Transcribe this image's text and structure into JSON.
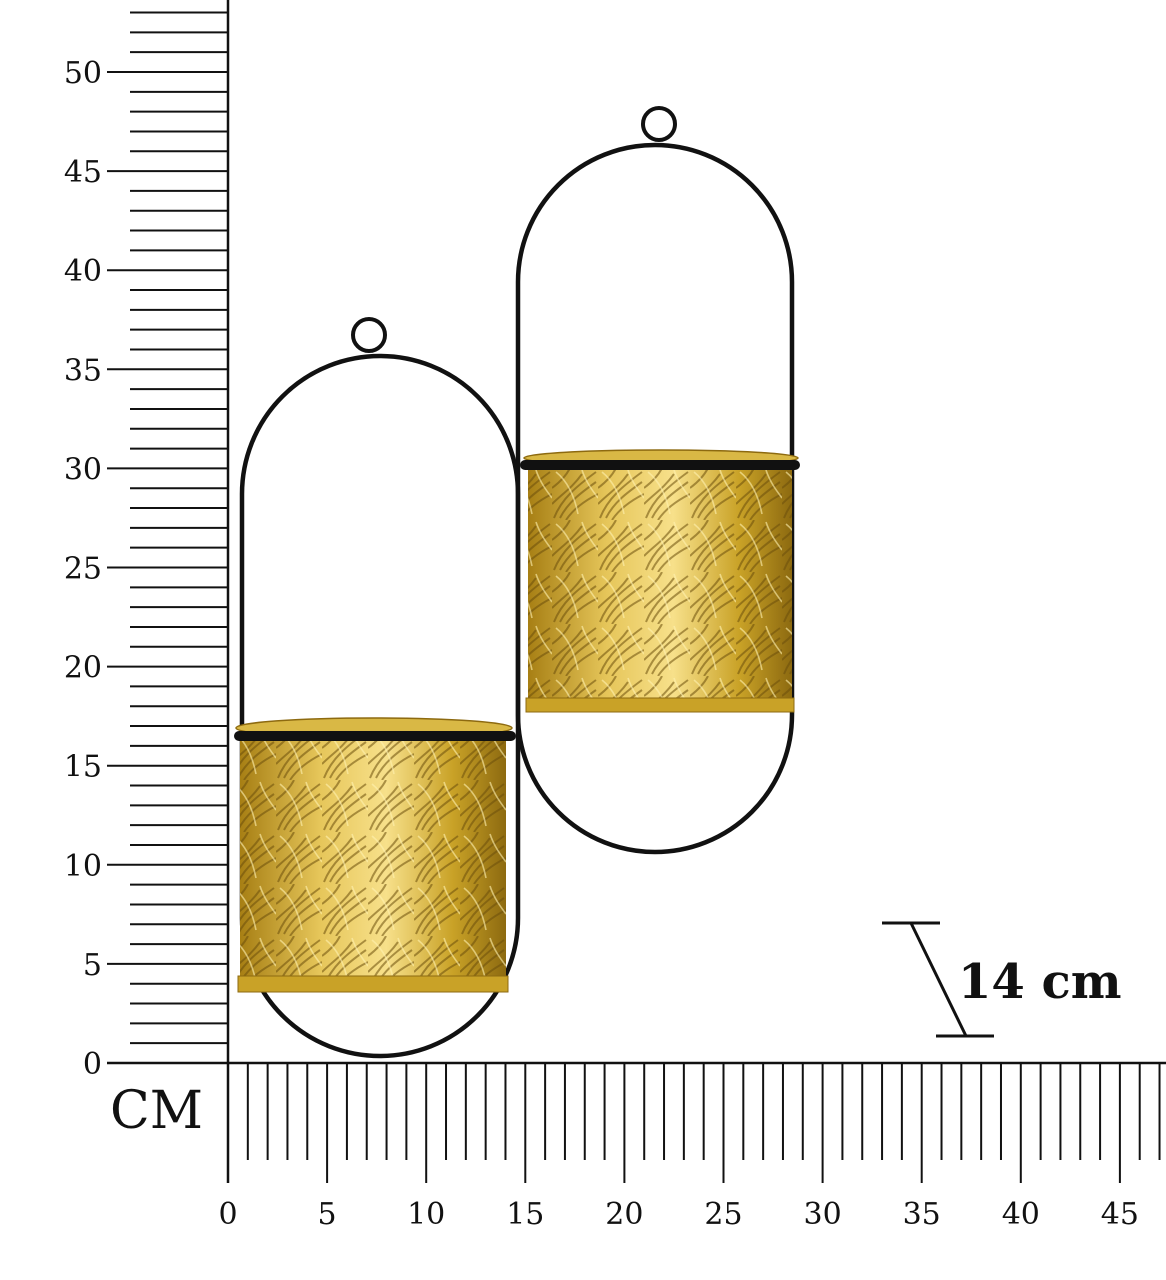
{
  "ruler": {
    "unit_label": "CM",
    "vertical_ticks": [
      "0",
      "5",
      "10",
      "15",
      "20",
      "25",
      "30",
      "35",
      "40",
      "45",
      "50"
    ],
    "horizontal_ticks": [
      "0",
      "5",
      "10",
      "15",
      "20",
      "25",
      "30",
      "35",
      "40",
      "45"
    ],
    "minor_step_cm": 1
  },
  "dimension": {
    "diameter_label": "14 cm",
    "icon": "diameter-icon"
  },
  "product": {
    "frame_color": "#111111",
    "gold_color": "#c9a227",
    "items": [
      "left-planter",
      "right-planter"
    ]
  }
}
